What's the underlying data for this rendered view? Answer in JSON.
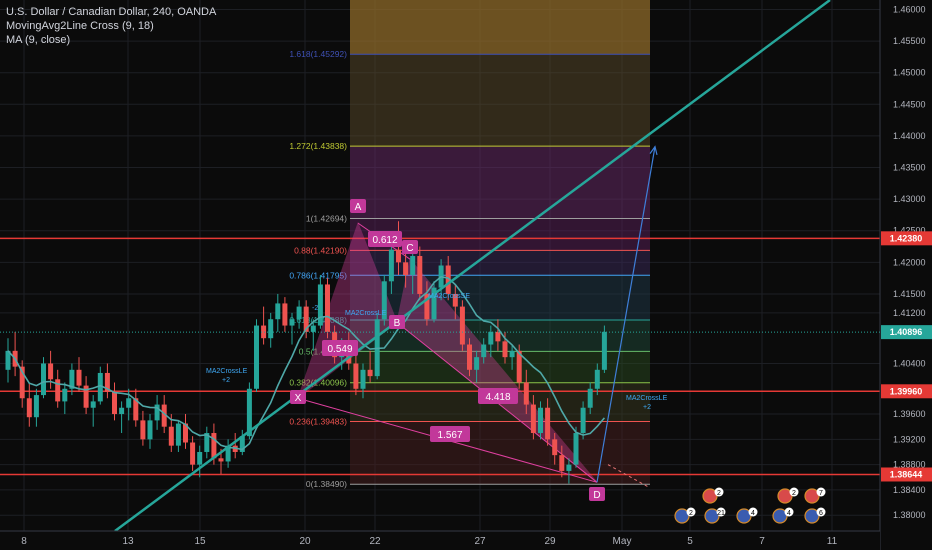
{
  "header": {
    "title": "U.S. Dollar / Canadian Dollar, 240, OANDA",
    "indicator1": "MovingAvg2Line Cross (9, 18)",
    "indicator2": "MA (9, close)"
  },
  "colors": {
    "background": "#0b0b0b",
    "bull": "#26a69a",
    "bear": "#ef5350",
    "ma": "#4fa8a8",
    "trendline": "#26a69a",
    "hline": "#e53935",
    "pattern": "#e040a0",
    "projection": "#3f7fd9"
  },
  "chart_data": {
    "type": "candlestick",
    "symbol": "USDCAD",
    "interval": "240",
    "ylim": [
      1.3775,
      1.4615
    ],
    "y_ticks": [
      "1.46000",
      "1.45500",
      "1.45000",
      "1.44500",
      "1.44000",
      "1.43500",
      "1.43000",
      "1.42500",
      "1.42000",
      "1.41500",
      "1.41200",
      "1.40400",
      "1.39600",
      "1.39200",
      "1.38800",
      "1.38400",
      "1.38000"
    ],
    "x_ticks": [
      "8",
      "13",
      "15",
      "20",
      "22",
      "27",
      "29",
      "May",
      "5",
      "7",
      "11"
    ],
    "price_tags": [
      {
        "label": "1.42380",
        "value": 1.4238,
        "kind": "line"
      },
      {
        "label": "1.40896",
        "value": 1.40896,
        "kind": "current"
      },
      {
        "label": "1.39960",
        "value": 1.3996,
        "kind": "line"
      },
      {
        "label": "1.38644",
        "value": 1.38644,
        "kind": "line"
      }
    ],
    "horizontal_lines": [
      1.4238,
      1.3996,
      1.38644
    ],
    "fib_levels": [
      {
        "label": "1.618(1.45292)",
        "ratio": 1.618,
        "price": 1.45292,
        "color": "#3f51b5"
      },
      {
        "label": "1.272(1.43838)",
        "ratio": 1.272,
        "price": 1.43838,
        "color": "#c0ca33"
      },
      {
        "label": "1(1.42694)",
        "ratio": 1,
        "price": 1.42694,
        "color": "#9e9e9e"
      },
      {
        "label": "0.88(1.42190)",
        "ratio": 0.88,
        "price": 1.4219,
        "color": "#ef5350"
      },
      {
        "label": "0.786(1.41795)",
        "ratio": 0.786,
        "price": 1.41795,
        "color": "#42a5f5"
      },
      {
        "label": "0.618(1.41088)",
        "ratio": 0.618,
        "price": 1.41088,
        "color": "#26a69a"
      },
      {
        "label": "0.5(1.40592)",
        "ratio": 0.5,
        "price": 1.40592,
        "color": "#66bb6a"
      },
      {
        "label": "0.382(1.40096)",
        "ratio": 0.382,
        "price": 1.40096,
        "color": "#8bc34a"
      },
      {
        "label": "0.236(1.39483)",
        "ratio": 0.236,
        "price": 1.39483,
        "color": "#ef5350"
      },
      {
        "label": "0(1.38490)",
        "ratio": 0,
        "price": 1.3849,
        "color": "#9e9e9e"
      }
    ],
    "pattern_points": [
      {
        "label": "X",
        "date": "Apr 20",
        "price": 1.3985
      },
      {
        "label": "A",
        "date": "Apr 21",
        "price": 1.4262
      },
      {
        "label": "B",
        "date": "Apr 22",
        "price": 1.4105
      },
      {
        "label": "C",
        "date": "Apr 23",
        "price": 1.4205
      },
      {
        "label": "D",
        "date": "Apr 30",
        "price": 1.3852
      }
    ],
    "pattern_ratios": [
      "0.612",
      "0.549",
      "4.418",
      "1.567"
    ],
    "signals": [
      "MA2CrossLE",
      "+2",
      "MA2CrossLE",
      "MA2CrossSE",
      "-2",
      "MA2CrossLE",
      "+2"
    ],
    "candles": [
      [
        1.403,
        1.408,
        1.401,
        1.406
      ],
      [
        1.406,
        1.409,
        1.402,
        1.4035
      ],
      [
        1.4035,
        1.4045,
        1.397,
        1.3985
      ],
      [
        1.3985,
        1.401,
        1.394,
        1.3955
      ],
      [
        1.3955,
        1.4,
        1.394,
        1.399
      ],
      [
        1.399,
        1.405,
        1.3985,
        1.404
      ],
      [
        1.404,
        1.406,
        1.4,
        1.4015
      ],
      [
        1.4015,
        1.403,
        1.397,
        1.398
      ],
      [
        1.398,
        1.401,
        1.396,
        1.4
      ],
      [
        1.4,
        1.404,
        1.399,
        1.403
      ],
      [
        1.403,
        1.405,
        1.3995,
        1.4005
      ],
      [
        1.4005,
        1.402,
        1.396,
        1.397
      ],
      [
        1.397,
        1.399,
        1.394,
        1.398
      ],
      [
        1.398,
        1.4035,
        1.3975,
        1.4025
      ],
      [
        1.4025,
        1.404,
        1.3985,
        1.3995
      ],
      [
        1.3995,
        1.401,
        1.395,
        1.396
      ],
      [
        1.396,
        1.398,
        1.393,
        1.397
      ],
      [
        1.397,
        1.4,
        1.395,
        1.3985
      ],
      [
        1.3985,
        1.4,
        1.394,
        1.395
      ],
      [
        1.395,
        1.3965,
        1.391,
        1.392
      ],
      [
        1.392,
        1.396,
        1.3905,
        1.395
      ],
      [
        1.395,
        1.399,
        1.3935,
        1.3975
      ],
      [
        1.3975,
        1.399,
        1.393,
        1.394
      ],
      [
        1.394,
        1.396,
        1.39,
        1.391
      ],
      [
        1.391,
        1.395,
        1.39,
        1.3945
      ],
      [
        1.3945,
        1.396,
        1.3905,
        1.3915
      ],
      [
        1.3915,
        1.3925,
        1.387,
        1.388
      ],
      [
        1.388,
        1.391,
        1.386,
        1.39
      ],
      [
        1.39,
        1.394,
        1.389,
        1.393
      ],
      [
        1.393,
        1.3945,
        1.388,
        1.389
      ],
      [
        1.389,
        1.3905,
        1.3865,
        1.3885
      ],
      [
        1.3885,
        1.392,
        1.3875,
        1.391
      ],
      [
        1.391,
        1.393,
        1.389,
        1.39
      ],
      [
        1.39,
        1.3935,
        1.3895,
        1.3925
      ],
      [
        1.3925,
        1.401,
        1.392,
        1.4
      ],
      [
        1.4,
        1.411,
        1.3995,
        1.41
      ],
      [
        1.41,
        1.413,
        1.407,
        1.408
      ],
      [
        1.408,
        1.412,
        1.4065,
        1.411
      ],
      [
        1.411,
        1.415,
        1.409,
        1.4135
      ],
      [
        1.4135,
        1.4145,
        1.409,
        1.41
      ],
      [
        1.41,
        1.412,
        1.407,
        1.411
      ],
      [
        1.411,
        1.414,
        1.4095,
        1.413
      ],
      [
        1.413,
        1.414,
        1.408,
        1.409
      ],
      [
        1.409,
        1.411,
        1.406,
        1.41
      ],
      [
        1.41,
        1.418,
        1.4095,
        1.4165
      ],
      [
        1.4165,
        1.4175,
        1.408,
        1.409
      ],
      [
        1.409,
        1.41,
        1.404,
        1.405
      ],
      [
        1.405,
        1.408,
        1.403,
        1.407
      ],
      [
        1.407,
        1.409,
        1.403,
        1.404
      ],
      [
        1.404,
        1.406,
        1.399,
        1.4
      ],
      [
        1.4,
        1.404,
        1.3985,
        1.403
      ],
      [
        1.403,
        1.406,
        1.401,
        1.402
      ],
      [
        1.402,
        1.412,
        1.4015,
        1.411
      ],
      [
        1.411,
        1.418,
        1.41,
        1.417
      ],
      [
        1.417,
        1.423,
        1.415,
        1.422
      ],
      [
        1.422,
        1.4265,
        1.418,
        1.42
      ],
      [
        1.42,
        1.423,
        1.416,
        1.418
      ],
      [
        1.418,
        1.422,
        1.415,
        1.421
      ],
      [
        1.421,
        1.4225,
        1.414,
        1.415
      ],
      [
        1.415,
        1.417,
        1.41,
        1.411
      ],
      [
        1.411,
        1.417,
        1.4105,
        1.416
      ],
      [
        1.416,
        1.4205,
        1.414,
        1.4195
      ],
      [
        1.4195,
        1.421,
        1.414,
        1.415
      ],
      [
        1.415,
        1.4165,
        1.411,
        1.413
      ],
      [
        1.413,
        1.414,
        1.406,
        1.407
      ],
      [
        1.407,
        1.408,
        1.402,
        1.403
      ],
      [
        1.403,
        1.406,
        1.401,
        1.405
      ],
      [
        1.405,
        1.408,
        1.404,
        1.407
      ],
      [
        1.407,
        1.41,
        1.405,
        1.409
      ],
      [
        1.409,
        1.411,
        1.406,
        1.4075
      ],
      [
        1.4075,
        1.409,
        1.404,
        1.405
      ],
      [
        1.405,
        1.407,
        1.403,
        1.406
      ],
      [
        1.406,
        1.407,
        1.4,
        1.401
      ],
      [
        1.401,
        1.403,
        1.396,
        1.3975
      ],
      [
        1.3975,
        1.399,
        1.392,
        1.393
      ],
      [
        1.393,
        1.398,
        1.392,
        1.397
      ],
      [
        1.397,
        1.3985,
        1.391,
        1.392
      ],
      [
        1.392,
        1.393,
        1.388,
        1.3895
      ],
      [
        1.3895,
        1.391,
        1.386,
        1.387
      ],
      [
        1.387,
        1.389,
        1.385,
        1.388
      ],
      [
        1.388,
        1.394,
        1.3875,
        1.393
      ],
      [
        1.393,
        1.398,
        1.392,
        1.397
      ],
      [
        1.397,
        1.401,
        1.396,
        1.4
      ],
      [
        1.4,
        1.404,
        1.399,
        1.403
      ],
      [
        1.403,
        1.41,
        1.4025,
        1.409
      ]
    ]
  }
}
